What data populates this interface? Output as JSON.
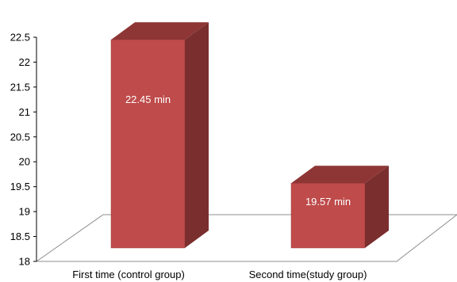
{
  "chart_data": {
    "type": "bar",
    "style": "3d-column",
    "categories": [
      "First time (control group)",
      "Second time(study group)"
    ],
    "values": [
      22.45,
      19.57
    ],
    "data_labels": [
      "22.45 min",
      "19.57 min"
    ],
    "ylim": [
      18,
      22.5
    ],
    "yticks": [
      "18",
      "18.5",
      "19",
      "19.5",
      "20",
      "20.5",
      "21",
      "21.5",
      "22",
      "22.5"
    ],
    "grid": false,
    "legend": "none",
    "colors": {
      "front": "#bf4b4b",
      "side": "#7b2e2e",
      "top": "#8e3636",
      "edge": "#9a3a3a",
      "floor_line": "#8c8c8c"
    }
  }
}
